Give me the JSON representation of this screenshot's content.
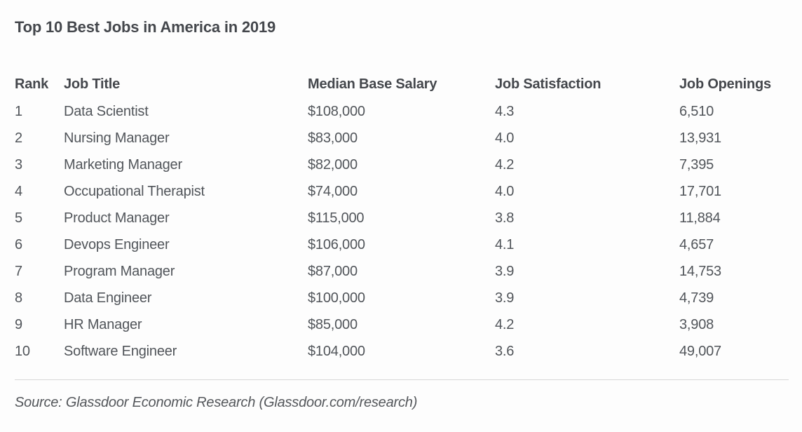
{
  "page_title": "Top 10 Best Jobs in America in 2019",
  "source_note": "Source: Glassdoor Economic Research (Glassdoor.com/research)",
  "colors": {
    "background": "#fdfdfd",
    "heading_text": "#44474c",
    "body_text": "#51555a",
    "job_title_link": "#5f7e9e",
    "divider": "#d8d8d8"
  },
  "table": {
    "columns": [
      "Rank",
      "Job Title",
      "Median Base Salary",
      "Job Satisfaction",
      "Job Openings"
    ],
    "rows": [
      {
        "rank": "1",
        "job_title": "Data Scientist",
        "median_base_salary": "$108,000",
        "job_satisfaction": "4.3",
        "job_openings": "6,510"
      },
      {
        "rank": "2",
        "job_title": "Nursing Manager",
        "median_base_salary": "$83,000",
        "job_satisfaction": "4.0",
        "job_openings": "13,931"
      },
      {
        "rank": "3",
        "job_title": "Marketing Manager",
        "median_base_salary": "$82,000",
        "job_satisfaction": "4.2",
        "job_openings": "7,395"
      },
      {
        "rank": "4",
        "job_title": "Occupational Therapist",
        "median_base_salary": "$74,000",
        "job_satisfaction": "4.0",
        "job_openings": "17,701"
      },
      {
        "rank": "5",
        "job_title": "Product Manager",
        "median_base_salary": "$115,000",
        "job_satisfaction": "3.8",
        "job_openings": "11,884"
      },
      {
        "rank": "6",
        "job_title": "Devops Engineer",
        "median_base_salary": "$106,000",
        "job_satisfaction": "4.1",
        "job_openings": "4,657"
      },
      {
        "rank": "7",
        "job_title": "Program Manager",
        "median_base_salary": "$87,000",
        "job_satisfaction": "3.9",
        "job_openings": "14,753"
      },
      {
        "rank": "8",
        "job_title": "Data Engineer",
        "median_base_salary": "$100,000",
        "job_satisfaction": "3.9",
        "job_openings": "4,739"
      },
      {
        "rank": "9",
        "job_title": "HR Manager",
        "median_base_salary": "$85,000",
        "job_satisfaction": "4.2",
        "job_openings": "3,908"
      },
      {
        "rank": "10",
        "job_title": "Software Engineer",
        "median_base_salary": "$104,000",
        "job_satisfaction": "3.6",
        "job_openings": "49,007"
      }
    ]
  },
  "chart_data": {
    "type": "table",
    "title": "Top 10 Best Jobs in America in 2019",
    "columns": [
      "Rank",
      "Job Title",
      "Median Base Salary",
      "Job Satisfaction",
      "Job Openings"
    ],
    "rows": [
      [
        1,
        "Data Scientist",
        108000,
        4.3,
        6510
      ],
      [
        2,
        "Nursing Manager",
        83000,
        4.0,
        13931
      ],
      [
        3,
        "Marketing Manager",
        82000,
        4.2,
        7395
      ],
      [
        4,
        "Occupational Therapist",
        74000,
        4.0,
        17701
      ],
      [
        5,
        "Product Manager",
        115000,
        3.8,
        11884
      ],
      [
        6,
        "Devops Engineer",
        106000,
        4.1,
        4657
      ],
      [
        7,
        "Program Manager",
        87000,
        3.9,
        14753
      ],
      [
        8,
        "Data Engineer",
        100000,
        3.9,
        4739
      ],
      [
        9,
        "HR Manager",
        85000,
        4.2,
        3908
      ],
      [
        10,
        "Software Engineer",
        104000,
        3.6,
        49007
      ]
    ],
    "units": {
      "median_base_salary": "USD",
      "job_satisfaction": "rating out of 5",
      "job_openings": "count"
    },
    "source": "Source: Glassdoor Economic Research (Glassdoor.com/research)"
  }
}
